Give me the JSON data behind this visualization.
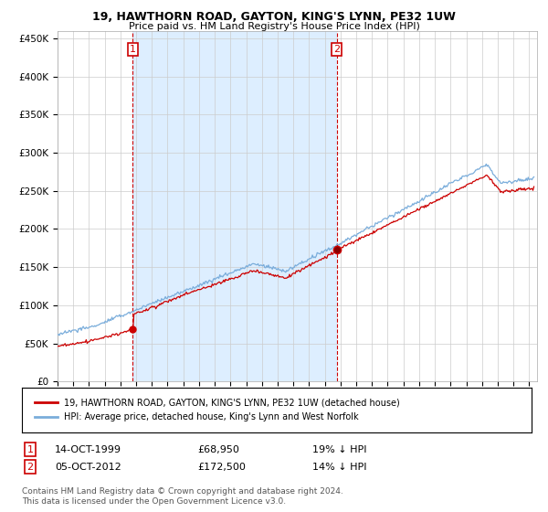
{
  "title": "19, HAWTHORN ROAD, GAYTON, KING'S LYNN, PE32 1UW",
  "subtitle": "Price paid vs. HM Land Registry's House Price Index (HPI)",
  "legend_label_red": "19, HAWTHORN ROAD, GAYTON, KING'S LYNN, PE32 1UW (detached house)",
  "legend_label_blue": "HPI: Average price, detached house, King's Lynn and West Norfolk",
  "annotation1_date": "14-OCT-1999",
  "annotation1_price": "£68,950",
  "annotation1_hpi": "19% ↓ HPI",
  "annotation2_date": "05-OCT-2012",
  "annotation2_price": "£172,500",
  "annotation2_hpi": "14% ↓ HPI",
  "footnote": "Contains HM Land Registry data © Crown copyright and database right 2024.\nThis data is licensed under the Open Government Licence v3.0.",
  "sale1_year": 1999.79,
  "sale1_value": 68950,
  "sale2_year": 2012.75,
  "sale2_value": 172500,
  "red_color": "#cc0000",
  "blue_color": "#7aaddb",
  "fill_color": "#ddeeff",
  "vline_color": "#cc0000",
  "ylim_max": 460000,
  "ylim_min": 0,
  "xmin": 1995,
  "xmax": 2025.5
}
